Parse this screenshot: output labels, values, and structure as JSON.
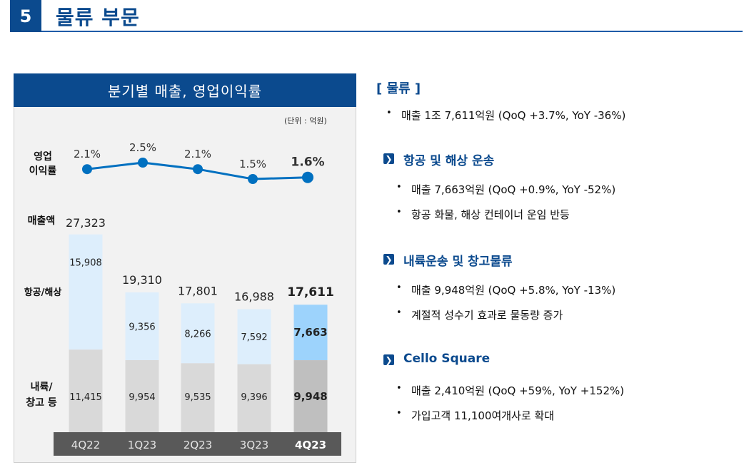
{
  "header": {
    "section_number": "5",
    "title": "물류 부문"
  },
  "panel": {
    "title": "분기별 매출, 영업이익률",
    "unit": "(단위 : 억원)",
    "row_labels": {
      "margin": "영업\n이익률",
      "revenue": "매출액",
      "air_sea": "항공/해상",
      "inland": "내륙/\n창고 등"
    }
  },
  "chart_data": {
    "type": "bar",
    "stacked": true,
    "categories": [
      "4Q22",
      "1Q23",
      "2Q23",
      "3Q23",
      "4Q23"
    ],
    "series": [
      {
        "name": "내륙/창고 등",
        "values": [
          11415,
          9954,
          9535,
          9396,
          9948
        ],
        "labels": [
          "11,415",
          "9,954",
          "9,535",
          "9,396",
          "9,948"
        ],
        "color": "#d9d9d9",
        "highlight_color": "#bfbfbf"
      },
      {
        "name": "항공/해상",
        "values": [
          15908,
          9356,
          8266,
          7592,
          7663
        ],
        "labels": [
          "15,908",
          "9,356",
          "8,266",
          "7,592",
          "7,663"
        ],
        "color": "#ddeefc",
        "highlight_color": "#9dd3fc"
      }
    ],
    "totals": {
      "name": "매출액",
      "values": [
        27323,
        19310,
        17801,
        16988,
        17611
      ],
      "labels": [
        "27,323",
        "19,310",
        "17,801",
        "16,988",
        "17,611"
      ]
    },
    "line": {
      "name": "영업이익률",
      "values": [
        2.1,
        2.5,
        2.1,
        1.5,
        1.6
      ],
      "labels": [
        "2.1%",
        "2.5%",
        "2.1%",
        "1.5%",
        "1.6%"
      ],
      "color": "#0070c0"
    },
    "highlight_index": 4,
    "unit": "(단위 : 억원)"
  },
  "right": {
    "heading": "[ 물류 ]",
    "summary": "매출 1조 7,611억원 (QoQ +3.7%, YoY -36%)",
    "sections": [
      {
        "title": "항공 및 해상 운송",
        "bullets": [
          "매출 7,663억원 (QoQ +0.9%, YoY -52%)",
          "항공 화물, 해상 컨테이너 운임 반등"
        ]
      },
      {
        "title": "내륙운송 및 창고물류",
        "bullets": [
          "매출 9,948억원 (QoQ +5.8%, YoY -13%)",
          "계절적 성수기 효과로 물동량 증가"
        ]
      },
      {
        "title": "Cello Square",
        "bullets": [
          "매출 2,410억원 (QoQ +59%, YoY +152%)",
          "가입고객 11,100여개사로 확대"
        ]
      }
    ],
    "icon": "chevron-right-box-icon"
  }
}
